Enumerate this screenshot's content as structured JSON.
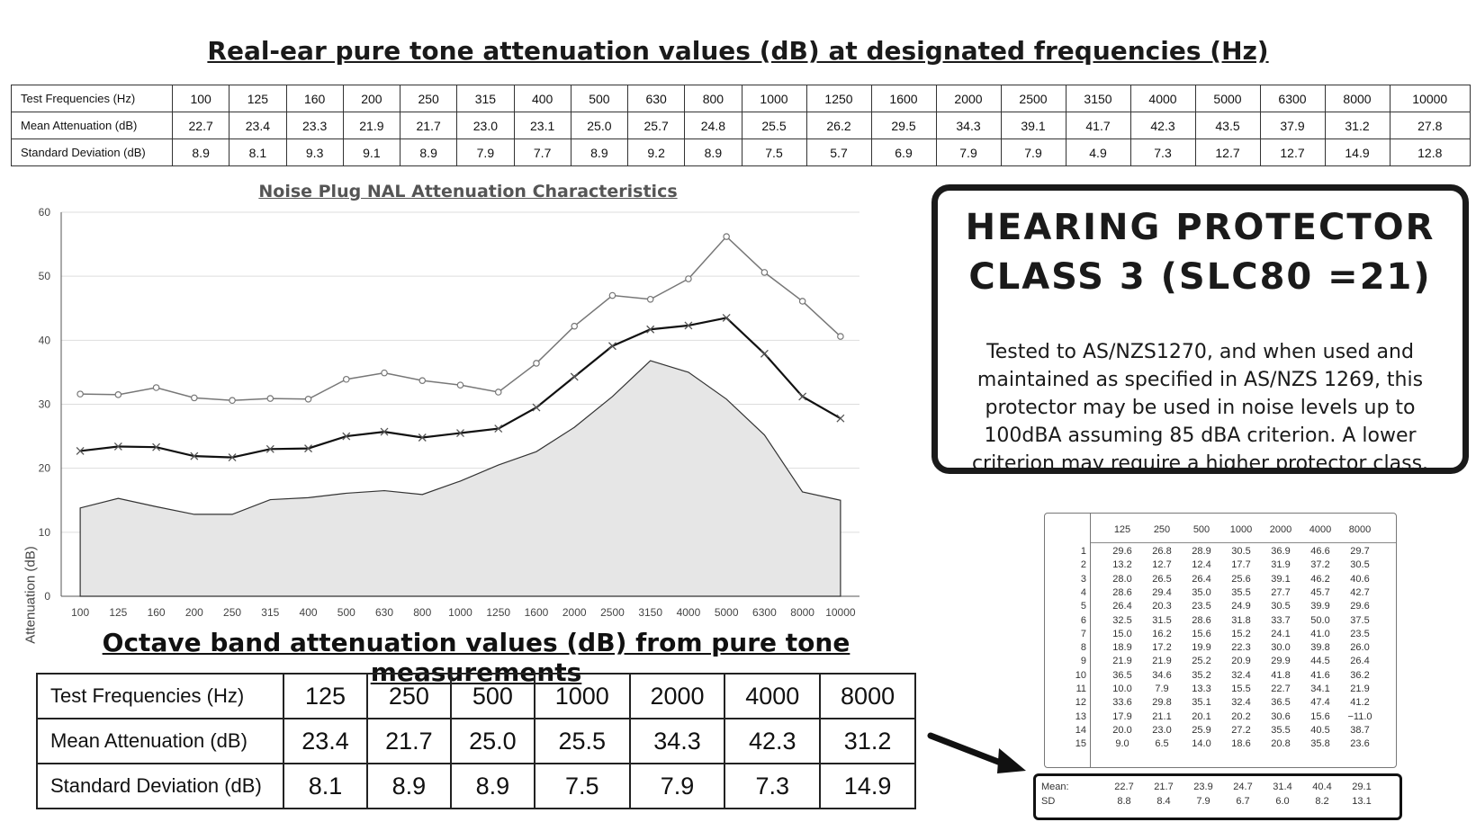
{
  "top_table": {
    "title": "Real-ear pure tone attenuation values (dB) at designated frequencies (Hz)",
    "row_labels": [
      "Test Frequencies (Hz)",
      "Mean Attenuation (dB)",
      "Standard Deviation (dB)"
    ],
    "frequencies": [
      "100",
      "125",
      "160",
      "200",
      "250",
      "315",
      "400",
      "500",
      "630",
      "800",
      "1000",
      "1250",
      "1600",
      "2000",
      "2500",
      "3150",
      "4000",
      "5000",
      "6300",
      "8000",
      "10000"
    ],
    "mean": [
      "22.7",
      "23.4",
      "23.3",
      "21.9",
      "21.7",
      "23.0",
      "23.1",
      "25.0",
      "25.7",
      "24.8",
      "25.5",
      "26.2",
      "29.5",
      "34.3",
      "39.1",
      "41.7",
      "42.3",
      "43.5",
      "37.9",
      "31.2",
      "27.8"
    ],
    "sd": [
      "8.9",
      "8.1",
      "9.3",
      "9.1",
      "8.9",
      "7.9",
      "7.7",
      "8.9",
      "9.2",
      "8.9",
      "7.5",
      "5.7",
      "6.9",
      "7.9",
      "7.9",
      "4.9",
      "7.3",
      "12.7",
      "12.7",
      "14.9",
      "12.8"
    ]
  },
  "chart_data": {
    "type": "line",
    "title": "Noise Plug NAL Attenuation Characteristics",
    "ylabel": "Attenuation (dB)",
    "xlabel": "",
    "ylim": [
      0,
      60
    ],
    "yticks": [
      "0",
      "10",
      "20",
      "30",
      "40",
      "50",
      "60"
    ],
    "categories": [
      "100",
      "125",
      "160",
      "200",
      "250",
      "315",
      "400",
      "500",
      "630",
      "800",
      "1000",
      "1250",
      "1600",
      "2000",
      "2500",
      "3150",
      "4000",
      "5000",
      "6300",
      "8000",
      "10000"
    ],
    "grid": true,
    "series": [
      {
        "marker": "circle",
        "values": [
          31.6,
          31.5,
          32.6,
          31.0,
          30.6,
          30.9,
          30.8,
          33.9,
          34.9,
          33.7,
          33.0,
          31.9,
          36.4,
          42.2,
          47.0,
          46.4,
          49.6,
          56.2,
          50.6,
          46.1,
          40.6
        ]
      },
      {
        "marker": "x",
        "values": [
          22.7,
          23.4,
          23.3,
          21.9,
          21.7,
          23.0,
          23.1,
          25.0,
          25.7,
          24.8,
          25.5,
          26.2,
          29.5,
          34.3,
          39.1,
          41.7,
          42.3,
          43.5,
          37.9,
          31.2,
          27.8
        ]
      },
      {
        "marker": "area",
        "values": [
          13.8,
          15.3,
          14.0,
          12.8,
          12.8,
          15.1,
          15.4,
          16.1,
          16.5,
          15.9,
          18.0,
          20.5,
          22.6,
          26.4,
          31.2,
          36.8,
          35.0,
          30.8,
          25.2,
          16.3,
          15.0
        ]
      }
    ]
  },
  "class_box": {
    "heading_line1": "HEARING PROTECTOR",
    "heading_line2": "CLASS 3 (SLC80 =21)",
    "body": "Tested to AS/NZS1270, and when used and maintained as specified in AS/NZS 1269, this protector may be used in noise levels up to 100dBA assuming 85 dBA criterion. A lower criterion may require a higher protector class."
  },
  "octave_table": {
    "title": "Octave band attenuation values (dB) from pure tone measurements",
    "row_labels": [
      "Test Frequencies (Hz)",
      "Mean Attenuation (dB)",
      "Standard Deviation (dB)"
    ],
    "frequencies": [
      "125",
      "250",
      "500",
      "1000",
      "2000",
      "4000",
      "8000"
    ],
    "mean": [
      "23.4",
      "21.7",
      "25.0",
      "25.5",
      "34.3",
      "42.3",
      "31.2"
    ],
    "sd": [
      "8.1",
      "8.9",
      "8.9",
      "7.5",
      "7.9",
      "7.3",
      "14.9"
    ]
  },
  "scan_table": {
    "headers": [
      "125",
      "250",
      "500",
      "1000",
      "2000",
      "4000",
      "8000"
    ],
    "rows": [
      [
        "1",
        "29.6",
        "26.8",
        "28.9",
        "30.5",
        "36.9",
        "46.6",
        "29.7"
      ],
      [
        "2",
        "13.2",
        "12.7",
        "12.4",
        "17.7",
        "31.9",
        "37.2",
        "30.5"
      ],
      [
        "3",
        "28.0",
        "26.5",
        "26.4",
        "25.6",
        "39.1",
        "46.2",
        "40.6"
      ],
      [
        "4",
        "28.6",
        "29.4",
        "35.0",
        "35.5",
        "27.7",
        "45.7",
        "42.7"
      ],
      [
        "5",
        "26.4",
        "20.3",
        "23.5",
        "24.9",
        "30.5",
        "39.9",
        "29.6"
      ],
      [
        "6",
        "32.5",
        "31.5",
        "28.6",
        "31.8",
        "33.7",
        "50.0",
        "37.5"
      ],
      [
        "7",
        "15.0",
        "16.2",
        "15.6",
        "15.2",
        "24.1",
        "41.0",
        "23.5"
      ],
      [
        "8",
        "18.9",
        "17.2",
        "19.9",
        "22.3",
        "30.0",
        "39.8",
        "26.0"
      ],
      [
        "9",
        "21.9",
        "21.9",
        "25.2",
        "20.9",
        "29.9",
        "44.5",
        "26.4"
      ],
      [
        "10",
        "36.5",
        "34.6",
        "35.2",
        "32.4",
        "41.8",
        "41.6",
        "36.2"
      ],
      [
        "11",
        "10.0",
        "7.9",
        "13.3",
        "15.5",
        "22.7",
        "34.1",
        "21.9"
      ],
      [
        "12",
        "33.6",
        "29.8",
        "35.1",
        "32.4",
        "36.5",
        "47.4",
        "41.2"
      ],
      [
        "13",
        "17.9",
        "21.1",
        "20.1",
        "20.2",
        "30.6",
        "15.6",
        "−11.0"
      ],
      [
        "14",
        "20.0",
        "23.0",
        "25.9",
        "27.2",
        "35.5",
        "40.5",
        "38.7"
      ],
      [
        "15",
        "9.0",
        "6.5",
        "14.0",
        "18.6",
        "20.8",
        "35.8",
        "23.6"
      ]
    ],
    "mean_label": "Mean:",
    "sd_label": "SD",
    "mean": [
      "22.7",
      "21.7",
      "23.9",
      "24.7",
      "31.4",
      "40.4",
      "29.1"
    ],
    "sd": [
      "8.8",
      "8.4",
      "7.9",
      "6.7",
      "6.0",
      "8.2",
      "13.1"
    ]
  }
}
